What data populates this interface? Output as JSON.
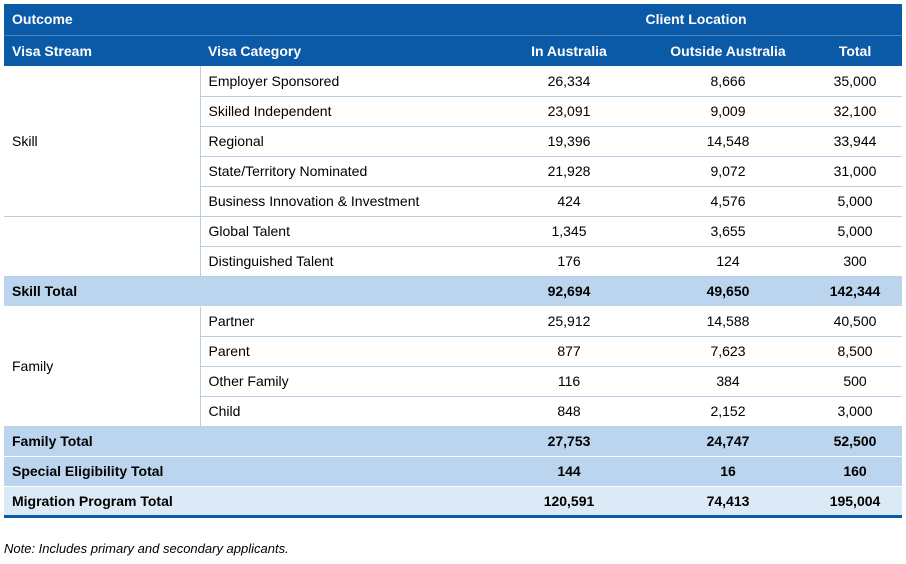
{
  "header": {
    "outcome": "Outcome",
    "client_location": "Client Location",
    "visa_stream": "Visa Stream",
    "visa_category": "Visa Category",
    "in_australia": "In Australia",
    "outside_australia": "Outside Australia",
    "total": "Total"
  },
  "skill": {
    "stream": "Skill",
    "rows": [
      {
        "category": "Employer Sponsored",
        "in": "26,334",
        "out": "8,666",
        "total": "35,000"
      },
      {
        "category": "Skilled Independent",
        "in": "23,091",
        "out": "9,009",
        "total": "32,100"
      },
      {
        "category": "Regional",
        "in": "19,396",
        "out": "14,548",
        "total": "33,944"
      },
      {
        "category": "State/Territory Nominated",
        "in": "21,928",
        "out": "9,072",
        "total": "31,000"
      },
      {
        "category": "Business Innovation & Investment",
        "in": "424",
        "out": "4,576",
        "total": "5,000"
      },
      {
        "category": "Global Talent",
        "in": "1,345",
        "out": "3,655",
        "total": "5,000"
      },
      {
        "category": "Distinguished Talent",
        "in": "176",
        "out": "124",
        "total": "300"
      }
    ],
    "total": {
      "label": "Skill Total",
      "in": "92,694",
      "out": "49,650",
      "total": "142,344"
    }
  },
  "family": {
    "stream": "Family",
    "rows": [
      {
        "category": "Partner",
        "in": "25,912",
        "out": "14,588",
        "total": "40,500"
      },
      {
        "category": "Parent",
        "in": "877",
        "out": "7,623",
        "total": "8,500"
      },
      {
        "category": "Other Family",
        "in": "116",
        "out": "384",
        "total": "500"
      },
      {
        "category": "Child",
        "in": "848",
        "out": "2,152",
        "total": "3,000"
      }
    ],
    "total": {
      "label": "Family Total",
      "in": "27,753",
      "out": "24,747",
      "total": "52,500"
    }
  },
  "special": {
    "label": "Special Eligibility Total",
    "in": "144",
    "out": "16",
    "total": "160"
  },
  "program": {
    "label": "Migration Program Total",
    "in": "120,591",
    "out": "74,413",
    "total": "195,004"
  },
  "note": "Note: Includes primary and secondary applicants."
}
